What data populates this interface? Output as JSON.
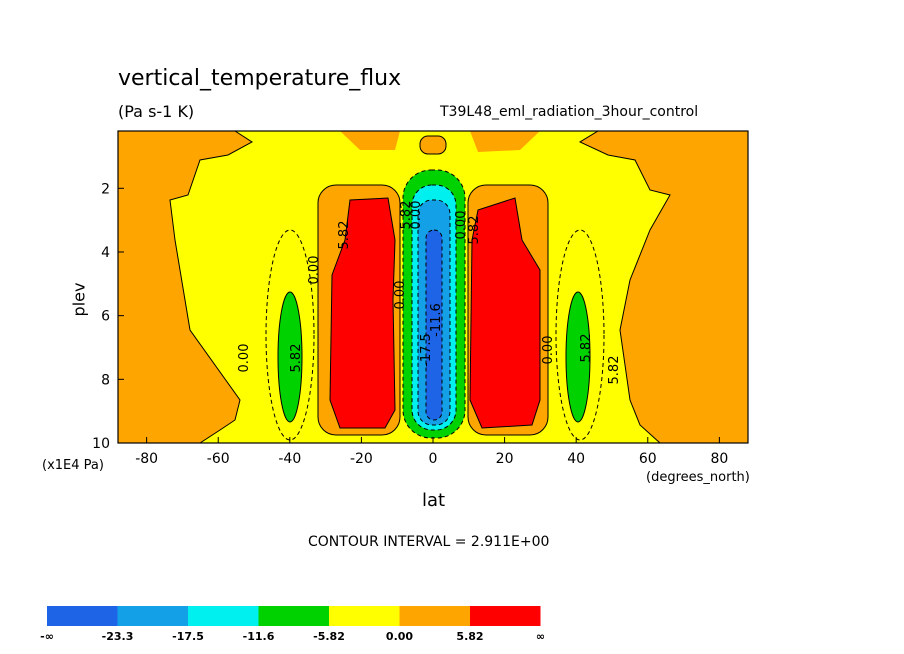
{
  "chart_data": {
    "type": "heatmap",
    "title": "vertical_temperature_flux",
    "units": "(Pa s-1 K)",
    "run_label": "T39L48_eml_radiation_3hour_control",
    "xlabel": "lat",
    "x_units": "(degrees_north)",
    "ylabel": "plev",
    "y_units": "(x1E4 Pa)",
    "xlim": [
      -88,
      88
    ],
    "ylim": [
      10,
      0.2
    ],
    "x_ticks": [
      "-80",
      "-60",
      "-40",
      "-20",
      "0",
      "20",
      "40",
      "60",
      "80"
    ],
    "y_ticks": [
      "2",
      "4",
      "6",
      "8",
      "10"
    ],
    "contour_interval_text": "CONTOUR INTERVAL = 2.911E+00",
    "contour_labels": [
      "0.00",
      "5.82",
      "0.00",
      "5.82",
      "5.82",
      "0.00",
      "-11.6",
      "-17.5",
      "0.00",
      "5.82",
      "5.82",
      "0.00",
      "5.82",
      "0.00"
    ],
    "colorbar": {
      "levels": [
        "-∞",
        "-23.3",
        "-17.5",
        "-11.6",
        "-5.82",
        "0.00",
        "5.82",
        "∞"
      ],
      "colors": [
        "#1e64e6",
        "#14a0e6",
        "#00f0f0",
        "#00d200",
        "#ffff00",
        "#ffa500",
        "#ff0000"
      ]
    },
    "colors": {
      "orange": "#ffa500",
      "yellow": "#ffff00",
      "red": "#ff0000",
      "green": "#00d200",
      "cyan": "#00f0f0",
      "lightblue": "#14a0e6",
      "blue": "#1e64e6"
    }
  }
}
